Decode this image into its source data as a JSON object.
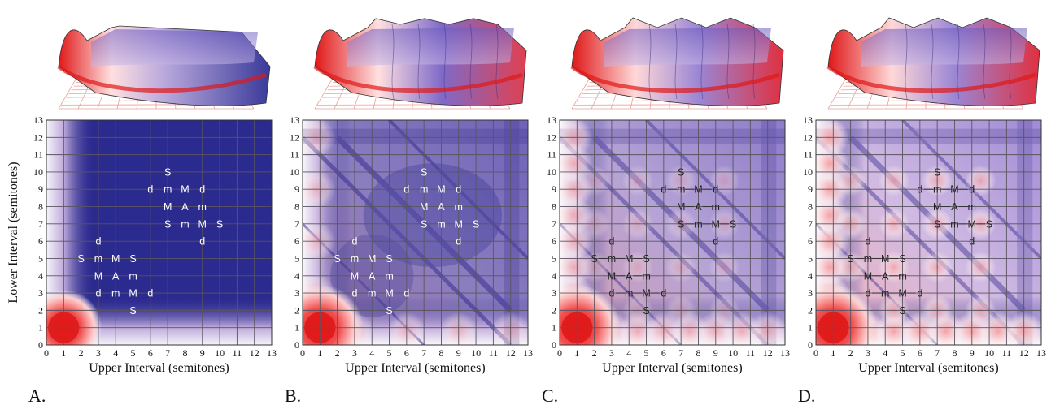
{
  "chart_data": {
    "type": "heatmap",
    "x_label": "Upper Interval (semitones)",
    "y_label": "Lower Interval (semitones)",
    "x_ticks": [
      "0",
      "1",
      "2",
      "3",
      "4",
      "5",
      "6",
      "7",
      "8",
      "9",
      "10",
      "11",
      "12",
      "13"
    ],
    "y_ticks": [
      "0",
      "1",
      "2",
      "3",
      "4",
      "5",
      "6",
      "7",
      "8",
      "9",
      "10",
      "11",
      "12",
      "13"
    ],
    "x_range": [
      0,
      13
    ],
    "y_range": [
      0,
      13
    ],
    "grid": true,
    "colors": {
      "low": "#2b2a8e",
      "mid": "#ffffff",
      "high": "#e01818"
    },
    "chord_symbols": [
      {
        "label": "S",
        "x": 2,
        "y": 5
      },
      {
        "label": "m",
        "x": 3,
        "y": 5
      },
      {
        "label": "M",
        "x": 4,
        "y": 5
      },
      {
        "label": "S",
        "x": 5,
        "y": 5
      },
      {
        "label": "d",
        "x": 3,
        "y": 6
      },
      {
        "label": "M",
        "x": 3,
        "y": 4
      },
      {
        "label": "A",
        "x": 4,
        "y": 4
      },
      {
        "label": "m",
        "x": 5,
        "y": 4
      },
      {
        "label": "d",
        "x": 3,
        "y": 3
      },
      {
        "label": "m",
        "x": 4,
        "y": 3
      },
      {
        "label": "M",
        "x": 5,
        "y": 3
      },
      {
        "label": "d",
        "x": 6,
        "y": 3
      },
      {
        "label": "S",
        "x": 5,
        "y": 2
      },
      {
        "label": "S",
        "x": 7,
        "y": 10
      },
      {
        "label": "d",
        "x": 6,
        "y": 9
      },
      {
        "label": "m",
        "x": 7,
        "y": 9
      },
      {
        "label": "M",
        "x": 8,
        "y": 9
      },
      {
        "label": "d",
        "x": 9,
        "y": 9
      },
      {
        "label": "M",
        "x": 7,
        "y": 8
      },
      {
        "label": "A",
        "x": 8,
        "y": 8
      },
      {
        "label": "m",
        "x": 9,
        "y": 8
      },
      {
        "label": "S",
        "x": 7,
        "y": 7
      },
      {
        "label": "m",
        "x": 8,
        "y": 7
      },
      {
        "label": "M",
        "x": 9,
        "y": 7
      },
      {
        "label": "S",
        "x": 10,
        "y": 7
      },
      {
        "label": "d",
        "x": 9,
        "y": 6
      }
    ],
    "panels": [
      {
        "letter": "A.",
        "dark_text": false,
        "dashes": false
      },
      {
        "letter": "B.",
        "dark_text": false,
        "dashes": false
      },
      {
        "letter": "C.",
        "dark_text": true,
        "dashes": true
      },
      {
        "letter": "D.",
        "dark_text": true,
        "dashes": true
      }
    ]
  }
}
